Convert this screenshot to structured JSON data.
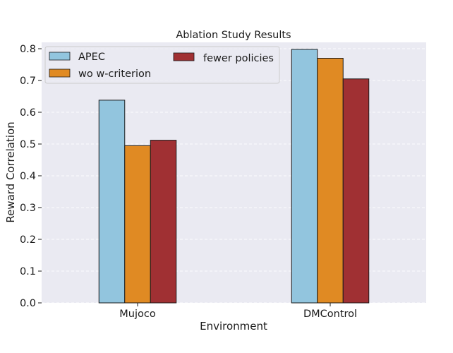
{
  "chart_data": {
    "type": "bar",
    "title": "Ablation Study Results",
    "xlabel": "Environment",
    "ylabel": "Reward Correlation",
    "categories": [
      "Mujoco",
      "DMControl"
    ],
    "series": [
      {
        "name": "APEC",
        "values": [
          0.638,
          0.798
        ],
        "color": "#92c5de"
      },
      {
        "name": "wo w-criterion",
        "values": [
          0.495,
          0.77
        ],
        "color": "#e08a23"
      },
      {
        "name": "fewer policies",
        "values": [
          0.512,
          0.705
        ],
        "color": "#a03033"
      }
    ],
    "ylim": [
      0.0,
      0.82
    ],
    "yticks": [
      "0.0",
      "0.1",
      "0.2",
      "0.3",
      "0.4",
      "0.5",
      "0.6",
      "0.7",
      "0.8"
    ],
    "grid": true,
    "legend_position": "upper-left",
    "background_color": "#eaeaf2"
  }
}
